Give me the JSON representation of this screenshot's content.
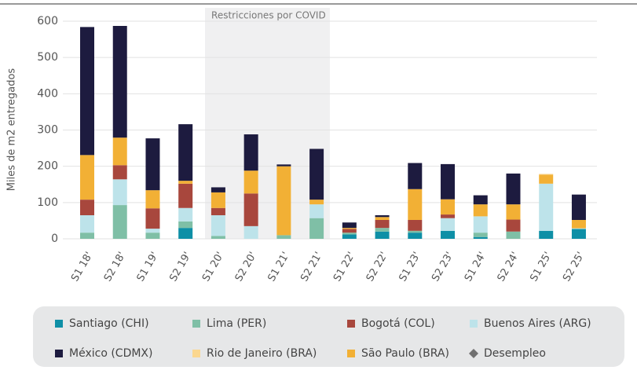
{
  "chart_data": {
    "type": "stacked_bar",
    "y_label": "Miles de m2 entregados",
    "annotation": {
      "text": "Restricciones por COVID",
      "from": "S1 20'",
      "to": "S2 21'"
    },
    "categories": [
      "S1 18'",
      "S2 18'",
      "S1 19'",
      "S2 19'",
      "S1 20'",
      "S2 20'",
      "S1 21'",
      "S2 21'",
      "S1 22'",
      "S2 22'",
      "S1 23'",
      "S2 23'",
      "S1 24'",
      "S2 24'",
      "S1 25'",
      "S2 25'"
    ],
    "series": [
      {
        "name": "Santiago (CHI)",
        "color": "#0e8fa6",
        "values": [
          0,
          0,
          0,
          30,
          0,
          0,
          0,
          0,
          12,
          20,
          17,
          22,
          5,
          0,
          22,
          27
        ]
      },
      {
        "name": "Lima (PER)",
        "color": "#7fbfa6",
        "values": [
          17,
          93,
          17,
          18,
          8,
          0,
          10,
          57,
          5,
          10,
          5,
          0,
          12,
          20,
          0,
          0
        ]
      },
      {
        "name": "Buenos Aires (ARG)",
        "color": "#bde3ea",
        "values": [
          48,
          71,
          11,
          37,
          57,
          35,
          0,
          38,
          0,
          0,
          0,
          35,
          45,
          0,
          130,
          2
        ]
      },
      {
        "name": "Bogotá (COL)",
        "color": "#a8473d",
        "values": [
          43,
          39,
          56,
          67,
          20,
          90,
          0,
          0,
          10,
          22,
          30,
          10,
          0,
          33,
          0,
          0
        ]
      },
      {
        "name": "São Paulo (BRA)",
        "color": "#f2b035",
        "values": [
          123,
          76,
          50,
          8,
          43,
          63,
          190,
          13,
          3,
          8,
          85,
          42,
          33,
          42,
          25,
          23
        ]
      },
      {
        "name": "Rio de Janeiro (BRA)",
        "color": "#fbd78f",
        "values": [
          0,
          0,
          0,
          0,
          0,
          0,
          0,
          0,
          0,
          0,
          0,
          0,
          0,
          0,
          2,
          0
        ]
      },
      {
        "name": "México (CDMX)",
        "color": "#1d1b3f",
        "values": [
          353,
          308,
          143,
          156,
          14,
          100,
          5,
          140,
          15,
          5,
          72,
          97,
          25,
          85,
          0,
          70
        ]
      },
      {
        "name": "Desempleo",
        "color": "#707070",
        "marker": "diamond",
        "values": [
          null,
          null,
          null,
          null,
          null,
          null,
          null,
          null,
          null,
          null,
          null,
          null,
          null,
          null,
          null,
          null
        ]
      }
    ],
    "ylim": [
      0,
      600
    ],
    "yticks": [
      0,
      100,
      200,
      300,
      400,
      500,
      600
    ],
    "grid": true
  }
}
